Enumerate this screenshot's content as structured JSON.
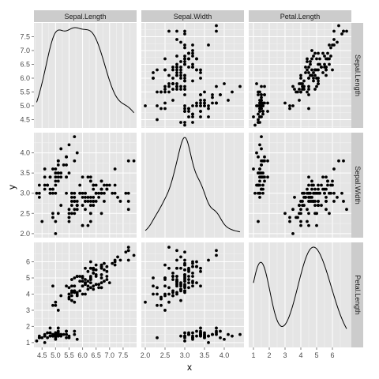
{
  "chart_data": {
    "type": "scatter",
    "kind": "scatterplot-matrix",
    "variables": [
      "Sepal.Length",
      "Sepal.Width",
      "Petal.Length"
    ],
    "xlabel": "x",
    "ylabel": "y",
    "grid": true,
    "colors": {
      "panel": "#e5e5e5",
      "strip": "#cccccc",
      "grid_major": "#ffffff",
      "grid_minor": "#f2f2f2",
      "ink": "#000000"
    },
    "axes": {
      "Sepal.Length": {
        "range": [
          4.2,
          8.0
        ],
        "ticks": [
          "4.5",
          "5.0",
          "5.5",
          "6.0",
          "6.5",
          "7.0",
          "7.5"
        ]
      },
      "Sepal.Width": {
        "range": [
          1.9,
          4.5
        ],
        "ticks": [
          "2.0",
          "2.5",
          "3.0",
          "3.5",
          "4.0"
        ]
      },
      "Petal.Length": {
        "range": [
          0.7,
          7.2
        ],
        "ticks": [
          "1",
          "2",
          "3",
          "4",
          "5",
          "6"
        ]
      }
    },
    "data": {
      "Sepal.Length": [
        5.1,
        4.9,
        4.7,
        4.6,
        5.0,
        5.4,
        4.6,
        5.0,
        4.4,
        4.9,
        5.4,
        4.8,
        4.8,
        4.3,
        5.8,
        5.7,
        5.4,
        5.1,
        5.7,
        5.1,
        5.4,
        5.1,
        4.6,
        5.1,
        4.8,
        5.0,
        5.0,
        5.2,
        5.2,
        4.7,
        4.8,
        5.4,
        5.2,
        5.5,
        4.9,
        5.0,
        5.5,
        4.9,
        4.4,
        5.1,
        5.0,
        4.5,
        4.4,
        5.0,
        5.1,
        4.8,
        5.1,
        4.6,
        5.3,
        5.0,
        7.0,
        6.4,
        6.9,
        5.5,
        6.5,
        5.7,
        6.3,
        4.9,
        6.6,
        5.2,
        5.0,
        5.9,
        6.0,
        6.1,
        5.6,
        6.7,
        5.6,
        5.8,
        6.2,
        5.6,
        5.9,
        6.1,
        6.3,
        6.1,
        6.4,
        6.6,
        6.8,
        6.7,
        6.0,
        5.7,
        5.5,
        5.5,
        5.8,
        6.0,
        5.4,
        6.0,
        6.7,
        6.3,
        5.6,
        5.5,
        5.5,
        6.1,
        5.8,
        5.0,
        5.6,
        5.7,
        5.7,
        6.2,
        5.1,
        5.7,
        6.3,
        5.8,
        7.1,
        6.3,
        6.5,
        7.6,
        4.9,
        7.3,
        6.7,
        7.2,
        6.5,
        6.4,
        6.8,
        5.7,
        5.8,
        6.4,
        6.5,
        7.7,
        7.7,
        6.0,
        6.9,
        5.6,
        7.7,
        6.3,
        6.7,
        7.2,
        6.2,
        6.1,
        6.4,
        7.2,
        7.4,
        7.9,
        6.4,
        6.3,
        6.1,
        7.7,
        6.3,
        6.4,
        6.0,
        6.9,
        6.7,
        6.9,
        5.8,
        6.8,
        6.7,
        6.7,
        6.3,
        6.5,
        6.2,
        5.9
      ],
      "Sepal.Width": [
        3.5,
        3.0,
        3.2,
        3.1,
        3.6,
        3.9,
        3.4,
        3.4,
        2.9,
        3.1,
        3.7,
        3.4,
        3.0,
        3.0,
        4.0,
        4.4,
        3.9,
        3.5,
        3.8,
        3.8,
        3.4,
        3.7,
        3.6,
        3.3,
        3.4,
        3.0,
        3.4,
        3.5,
        3.4,
        3.2,
        3.1,
        3.4,
        4.1,
        4.2,
        3.1,
        3.2,
        3.5,
        3.6,
        3.0,
        3.4,
        3.5,
        2.3,
        3.2,
        3.5,
        3.8,
        3.0,
        3.8,
        3.2,
        3.7,
        3.3,
        3.2,
        3.2,
        3.1,
        2.3,
        2.8,
        2.8,
        3.3,
        2.4,
        2.9,
        2.7,
        2.0,
        3.0,
        2.2,
        2.9,
        2.9,
        3.1,
        3.0,
        2.7,
        2.2,
        2.5,
        3.2,
        2.8,
        2.5,
        2.8,
        2.9,
        3.0,
        2.8,
        3.0,
        2.9,
        2.6,
        2.4,
        2.4,
        2.7,
        2.7,
        3.0,
        3.4,
        3.1,
        2.3,
        3.0,
        2.5,
        2.6,
        3.0,
        2.6,
        2.3,
        2.7,
        3.0,
        2.9,
        2.9,
        2.5,
        2.8,
        3.3,
        2.7,
        3.0,
        2.9,
        3.0,
        3.0,
        2.5,
        2.9,
        2.5,
        3.6,
        3.2,
        2.7,
        3.0,
        2.5,
        2.8,
        3.2,
        3.0,
        3.8,
        2.6,
        2.2,
        3.2,
        2.8,
        2.8,
        2.7,
        3.3,
        3.2,
        2.8,
        3.0,
        2.8,
        3.0,
        2.8,
        3.8,
        2.8,
        2.8,
        2.6,
        3.0,
        3.4,
        3.1,
        3.0,
        3.1,
        3.1,
        3.1,
        2.7,
        3.2,
        3.3,
        3.0,
        2.5,
        3.0,
        3.4,
        3.0
      ],
      "Petal.Length": [
        1.4,
        1.4,
        1.3,
        1.5,
        1.4,
        1.7,
        1.4,
        1.5,
        1.4,
        1.5,
        1.5,
        1.6,
        1.4,
        1.1,
        1.2,
        1.5,
        1.3,
        1.4,
        1.7,
        1.5,
        1.7,
        1.5,
        1.0,
        1.7,
        1.9,
        1.6,
        1.6,
        1.5,
        1.4,
        1.6,
        1.6,
        1.5,
        1.5,
        1.4,
        1.5,
        1.2,
        1.3,
        1.4,
        1.3,
        1.5,
        1.3,
        1.3,
        1.3,
        1.6,
        1.9,
        1.4,
        1.6,
        1.4,
        1.5,
        1.4,
        4.7,
        4.5,
        4.9,
        4.0,
        4.6,
        4.5,
        4.7,
        3.3,
        4.6,
        3.9,
        3.5,
        4.2,
        4.0,
        4.7,
        3.6,
        4.4,
        4.5,
        4.1,
        4.5,
        3.9,
        4.8,
        4.0,
        4.9,
        4.7,
        4.3,
        4.4,
        4.8,
        5.0,
        4.5,
        3.5,
        3.8,
        3.7,
        3.9,
        5.1,
        4.5,
        4.5,
        4.7,
        4.4,
        4.1,
        4.0,
        4.4,
        4.6,
        4.0,
        3.3,
        4.2,
        4.2,
        4.2,
        4.3,
        3.0,
        4.1,
        6.0,
        5.1,
        5.9,
        5.6,
        5.8,
        6.6,
        4.5,
        6.3,
        5.8,
        6.1,
        5.1,
        5.3,
        5.5,
        5.0,
        5.1,
        5.3,
        5.5,
        6.7,
        6.9,
        5.0,
        5.7,
        4.9,
        6.7,
        4.9,
        5.7,
        6.0,
        4.8,
        4.9,
        5.6,
        5.8,
        6.1,
        6.4,
        5.6,
        5.1,
        5.6,
        6.1,
        5.6,
        5.5,
        4.8,
        5.4,
        5.6,
        5.1,
        5.1,
        5.9,
        5.7,
        5.2,
        5.0,
        5.2,
        5.4,
        5.1
      ]
    }
  }
}
